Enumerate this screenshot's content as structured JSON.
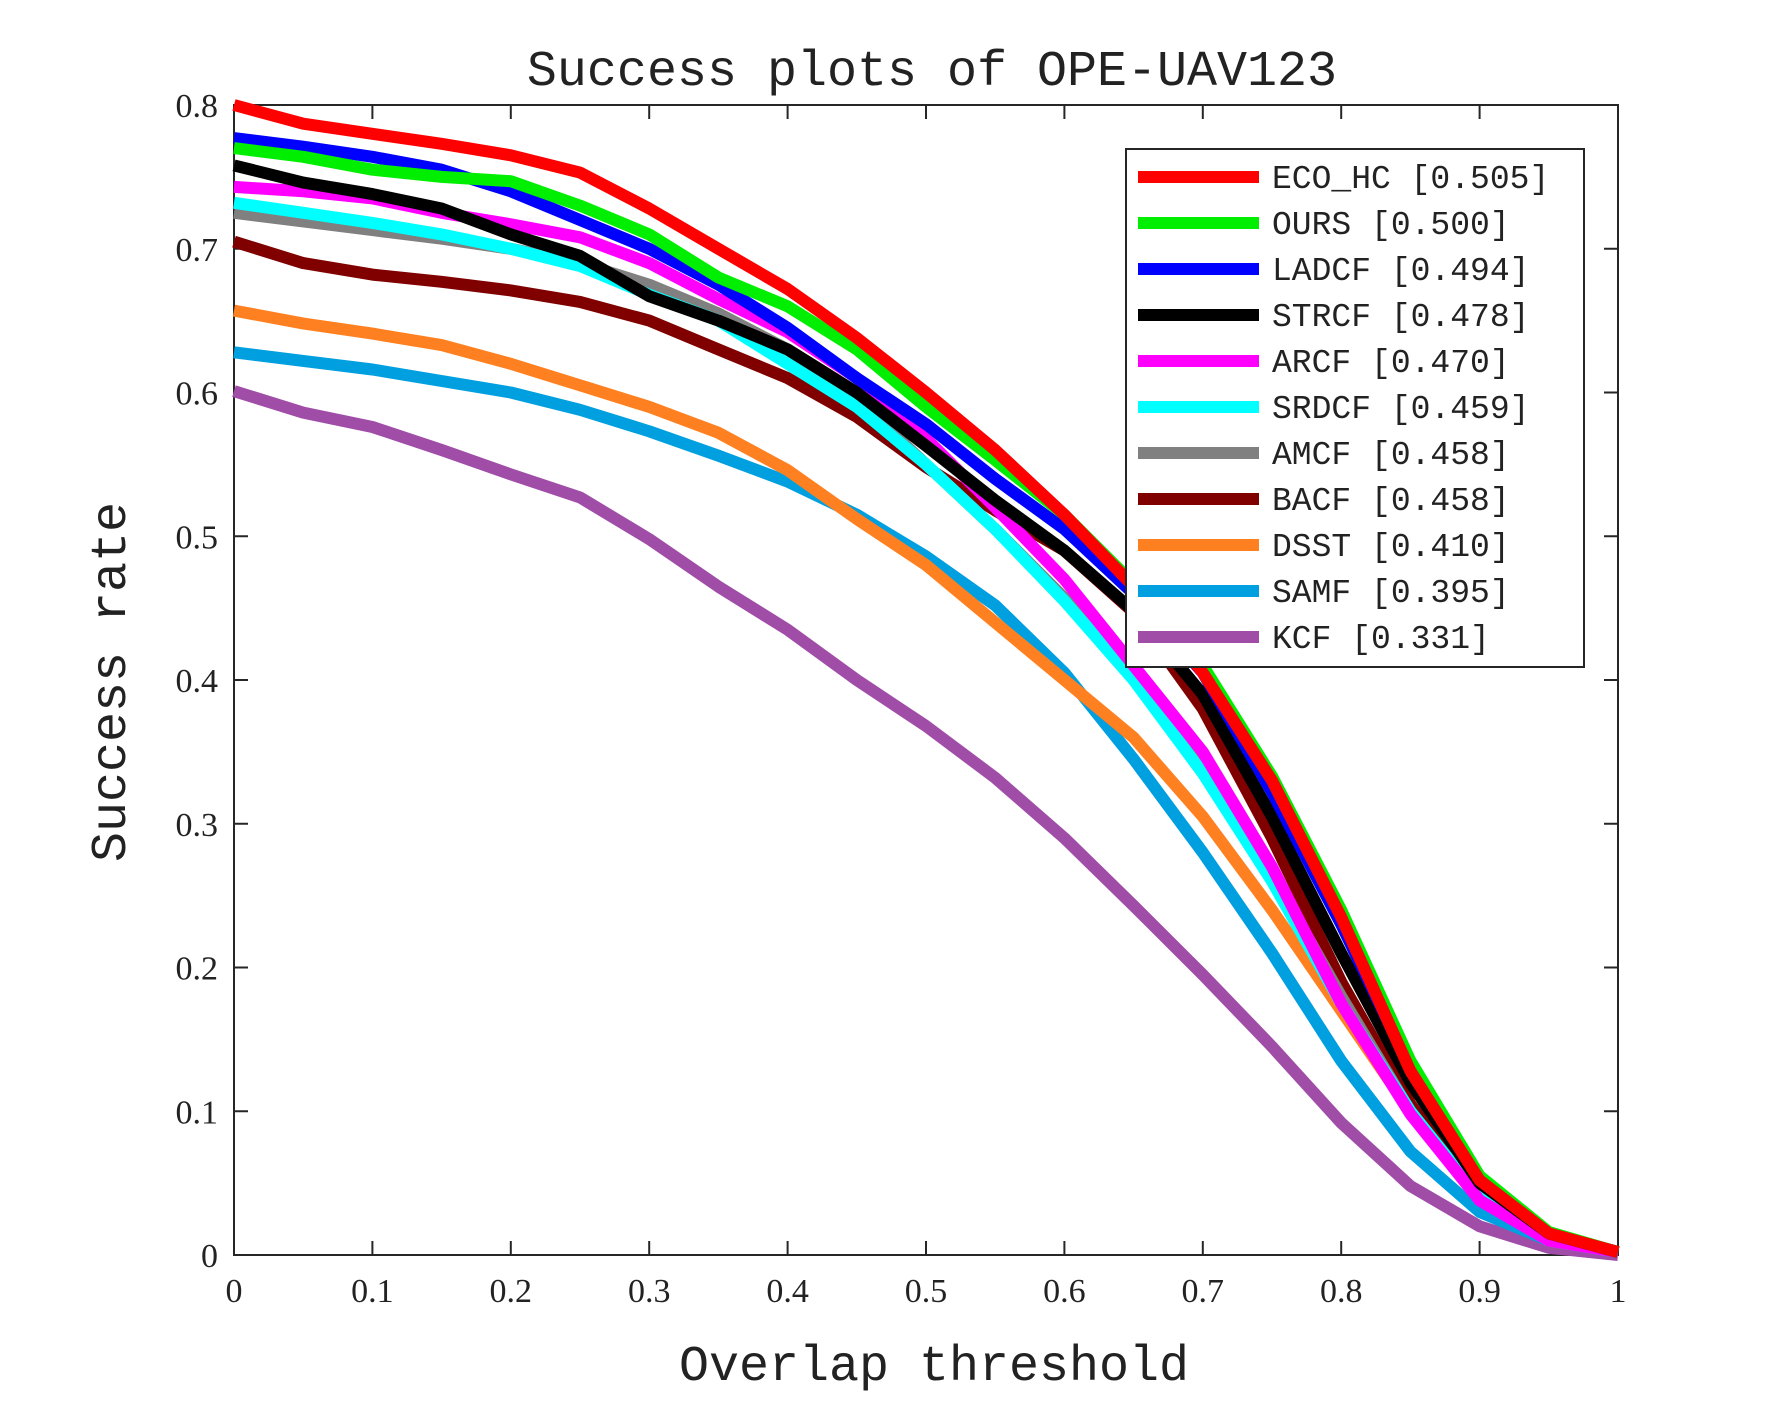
{
  "chart_data": {
    "type": "line",
    "title": "Success plots of OPE-UAV123",
    "xlabel": "Overlap threshold",
    "ylabel": "Success rate",
    "xlim": [
      0,
      1
    ],
    "ylim": [
      0,
      0.8
    ],
    "xticks": [
      "0",
      "0.1",
      "0.2",
      "0.3",
      "0.4",
      "0.5",
      "0.6",
      "0.7",
      "0.8",
      "0.9",
      "1"
    ],
    "yticks": [
      "0",
      "0.1",
      "0.2",
      "0.3",
      "0.4",
      "0.5",
      "0.6",
      "0.7",
      "0.8"
    ],
    "grid": false,
    "legend_position": "top-right",
    "x": [
      0,
      0.05,
      0.1,
      0.15,
      0.2,
      0.25,
      0.3,
      0.35,
      0.4,
      0.45,
      0.5,
      0.55,
      0.6,
      0.65,
      0.7,
      0.75,
      0.8,
      0.85,
      0.9,
      0.95,
      1.0
    ],
    "series": [
      {
        "name": "ECO_HC [0.505]",
        "color": "#ff0000",
        "values": [
          0.8,
          0.787,
          0.78,
          0.773,
          0.765,
          0.753,
          0.728,
          0.7,
          0.672,
          0.638,
          0.6,
          0.56,
          0.515,
          0.465,
          0.405,
          0.33,
          0.235,
          0.128,
          0.052,
          0.015,
          0.002
        ]
      },
      {
        "name": "OURS [0.500]",
        "color": "#00ee00",
        "values": [
          0.77,
          0.764,
          0.755,
          0.75,
          0.747,
          0.73,
          0.71,
          0.68,
          0.66,
          0.63,
          0.59,
          0.553,
          0.515,
          0.467,
          0.41,
          0.333,
          0.24,
          0.135,
          0.055,
          0.016,
          0.002
        ]
      },
      {
        "name": "LADCF [0.494]",
        "color": "#0000ff",
        "values": [
          0.777,
          0.771,
          0.764,
          0.755,
          0.74,
          0.72,
          0.7,
          0.675,
          0.645,
          0.61,
          0.578,
          0.54,
          0.505,
          0.46,
          0.405,
          0.322,
          0.23,
          0.13,
          0.053,
          0.015,
          0.002
        ]
      },
      {
        "name": "STRCF [0.478]",
        "color": "#000000",
        "values": [
          0.758,
          0.746,
          0.738,
          0.728,
          0.71,
          0.695,
          0.667,
          0.65,
          0.63,
          0.6,
          0.563,
          0.525,
          0.49,
          0.448,
          0.39,
          0.305,
          0.21,
          0.12,
          0.05,
          0.015,
          0.002
        ]
      },
      {
        "name": "ARCF [0.470]",
        "color": "#ff00ff",
        "values": [
          0.743,
          0.74,
          0.735,
          0.725,
          0.717,
          0.708,
          0.69,
          0.665,
          0.642,
          0.61,
          0.568,
          0.52,
          0.47,
          0.41,
          0.35,
          0.27,
          0.175,
          0.098,
          0.038,
          0.01,
          0.002
        ]
      },
      {
        "name": "SRDCF [0.459]",
        "color": "#00ffff",
        "values": [
          0.732,
          0.725,
          0.718,
          0.71,
          0.7,
          0.688,
          0.668,
          0.65,
          0.62,
          0.59,
          0.55,
          0.505,
          0.455,
          0.4,
          0.335,
          0.26,
          0.175,
          0.1,
          0.04,
          0.01,
          0.002
        ]
      },
      {
        "name": "AMCF [0.458]",
        "color": "#808080",
        "values": [
          0.725,
          0.719,
          0.713,
          0.707,
          0.7,
          0.69,
          0.675,
          0.655,
          0.63,
          0.595,
          0.55,
          0.505,
          0.457,
          0.402,
          0.34,
          0.265,
          0.18,
          0.1,
          0.04,
          0.01,
          0.002
        ]
      },
      {
        "name": "BACF [0.458]",
        "color": "#800000",
        "values": [
          0.705,
          0.69,
          0.682,
          0.677,
          0.671,
          0.663,
          0.65,
          0.63,
          0.61,
          0.583,
          0.548,
          0.518,
          0.49,
          0.447,
          0.38,
          0.29,
          0.19,
          0.105,
          0.04,
          0.01,
          0.002
        ]
      },
      {
        "name": "DSST [0.410]",
        "color": "#ff8020",
        "values": [
          0.657,
          0.648,
          0.641,
          0.633,
          0.62,
          0.605,
          0.59,
          0.572,
          0.546,
          0.512,
          0.48,
          0.44,
          0.4,
          0.36,
          0.305,
          0.24,
          0.17,
          0.1,
          0.04,
          0.015,
          0.002
        ]
      },
      {
        "name": "SAMF [0.395]",
        "color": "#009fdf",
        "values": [
          0.628,
          0.622,
          0.616,
          0.608,
          0.6,
          0.588,
          0.573,
          0.556,
          0.538,
          0.515,
          0.486,
          0.452,
          0.405,
          0.345,
          0.28,
          0.21,
          0.135,
          0.072,
          0.03,
          0.01,
          0.002
        ]
      },
      {
        "name": "KCF [0.331]",
        "color": "#a04da8",
        "values": [
          0.601,
          0.586,
          0.576,
          0.56,
          0.543,
          0.527,
          0.498,
          0.465,
          0.435,
          0.4,
          0.368,
          0.332,
          0.29,
          0.243,
          0.195,
          0.145,
          0.092,
          0.048,
          0.02,
          0.005,
          0.0
        ]
      }
    ]
  }
}
